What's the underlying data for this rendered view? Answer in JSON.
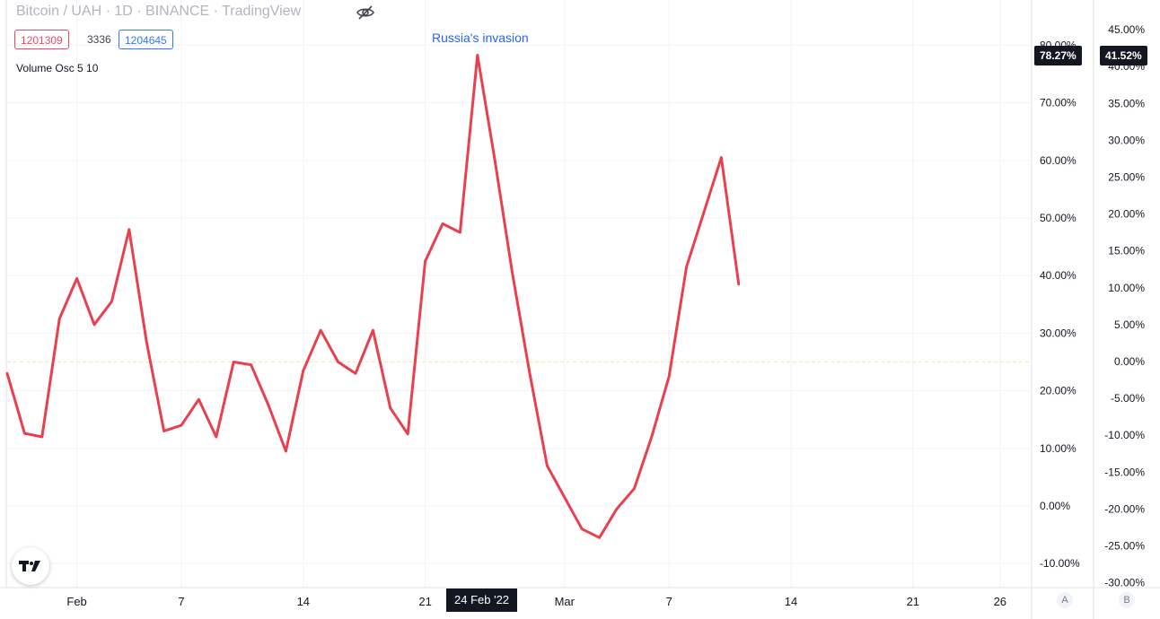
{
  "header": {
    "title": "Bitcoin / UAH · 1D · BINANCE · TradingView",
    "hide_icon": "eye-crossed-icon",
    "value_red": "1201309",
    "value_mid": "3336",
    "value_blue": "1204645",
    "indicator_label": "Volume Osc 5 10"
  },
  "annotation": "Russia's invasion",
  "logo": "tradingview-logo-icon",
  "scale_buttons": {
    "a": "A",
    "b": "B"
  },
  "colors": {
    "line": "#e8404f",
    "zero_line": "#f5e6a0",
    "grid": "#f0f3fa",
    "tag_bg": "#131722"
  },
  "chart_data": {
    "type": "line",
    "series": [
      {
        "values": [
          23,
          12.6,
          12,
          32.5,
          39.5,
          31.5,
          35.5,
          48,
          28.5,
          13,
          14,
          18.5,
          12,
          25,
          24.5,
          17.5,
          9.5,
          23.5,
          30.5,
          25,
          23,
          30.5,
          17,
          12.5,
          42.5,
          49,
          47.5,
          78.27,
          60,
          40.5,
          23,
          7,
          1.5,
          -4,
          -5.5,
          -0.5,
          3,
          12,
          22.5,
          41.5,
          51,
          60.5,
          38.5
        ]
      }
    ],
    "x_ticks": [
      {
        "label": "Feb",
        "index": 4
      },
      {
        "label": "7",
        "index": 10
      },
      {
        "label": "14",
        "index": 17
      },
      {
        "label": "21",
        "index": 24
      },
      {
        "label": "Mar",
        "index": 32
      },
      {
        "label": "7",
        "index": 38
      },
      {
        "label": "14",
        "index": 45
      },
      {
        "label": "21",
        "index": 52
      },
      {
        "label": "26",
        "index": 57
      }
    ],
    "highlight_date": {
      "label": "24 Feb '22",
      "index": 27
    },
    "left_axis": {
      "min": -10,
      "max": 80,
      "step": 10,
      "ticks": [
        "-10.00%",
        "0.00%",
        "10.00%",
        "20.00%",
        "30.00%",
        "40.00%",
        "50.00%",
        "60.00%",
        "70.00%",
        "80.00%"
      ],
      "last_value": 78.27,
      "last_label": "78.27%"
    },
    "right_axis": {
      "min": -30,
      "max": 45,
      "step": 5,
      "ticks": [
        "-30.00%",
        "-25.00%",
        "-20.00%",
        "-15.00%",
        "-10.00%",
        "-5.00%",
        "0.00%",
        "5.00%",
        "10.00%",
        "15.00%",
        "20.00%",
        "25.00%",
        "30.00%",
        "35.00%",
        "40.00%",
        "45.00%"
      ],
      "last_value": 41.52,
      "last_label": "41.52%"
    },
    "zero_line_value": 25
  }
}
